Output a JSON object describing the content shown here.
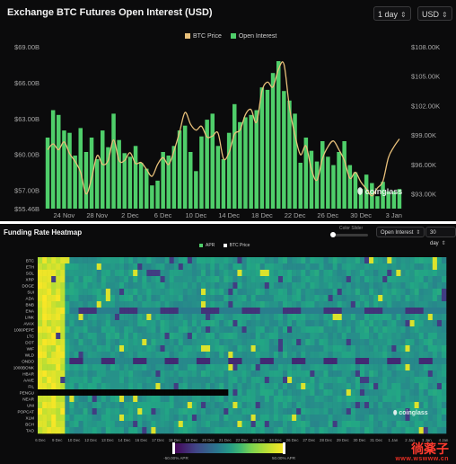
{
  "top": {
    "title": "Exchange BTC Futures Open Interest (USD)",
    "interval": "1 day",
    "currency": "USD",
    "watermark": "coinglass"
  },
  "bottom": {
    "title": "Funding Rate Heatmap",
    "color_slider_label": "Color Slider",
    "metric_select": "Open Interest",
    "range_select": "30 day",
    "watermark": "coinglass"
  },
  "corner_watermark": {
    "main": "徜薬子",
    "sub": "www.wswww.cn"
  },
  "chart_data": [
    {
      "type": "bar",
      "title": "Exchange BTC Futures Open Interest (USD)",
      "series": [
        {
          "name": "Open Interest",
          "color": "#4fce6a",
          "axis": "left",
          "values": [
            61.4,
            63.7,
            63.3,
            62.0,
            61.8,
            59.9,
            62.2,
            60.2,
            61.4,
            59.6,
            62.0,
            60.6,
            63.4,
            61.2,
            60.1,
            59.8,
            60.7,
            59.3,
            58.8,
            57.4,
            57.8,
            60.2,
            59.9,
            60.7,
            62.0,
            62.4,
            60.2,
            58.6,
            61.5,
            62.9,
            63.4,
            60.7,
            59.6,
            61.8,
            64.2,
            62.7,
            63.1,
            63.3,
            63.7,
            65.6,
            65.4,
            66.8,
            67.8,
            65.3,
            64.5,
            63.4,
            59.3,
            61.4,
            60.3,
            59.4,
            61.1,
            59.8,
            59.1,
            60.2,
            61.1,
            59.1,
            58.5,
            57.1,
            58.3,
            57.6,
            56.5,
            57.7,
            56.9,
            56.9,
            57.1
          ]
        },
        {
          "name": "BTC Price",
          "color": "#e8c07a",
          "axis": "right",
          "values": [
            97.5,
            98.1,
            97.5,
            98.3,
            97.1,
            96.3,
            95.2,
            93.0,
            94.6,
            96.9,
            96.0,
            96.4,
            98.5,
            96.4,
            96.4,
            97.2,
            96.1,
            96.2,
            95.5,
            94.8,
            96.0,
            96.7,
            96.0,
            97.4,
            99.3,
            101.3,
            100.1,
            99.5,
            99.9,
            98.8,
            98.9,
            99.2,
            96.6,
            97.2,
            99.1,
            99.5,
            101.1,
            101.6,
            100.3,
            103.5,
            104.4,
            103.9,
            105.7,
            106.2,
            101.8,
            99.0,
            97.0,
            97.9,
            95.5,
            94.4,
            96.6,
            97.8,
            98.4,
            97.5,
            96.4,
            94.6,
            95.2,
            94.2,
            93.5,
            92.8,
            93.6,
            94.3,
            96.7,
            97.8,
            98.6
          ]
        }
      ],
      "x_tick_labels": [
        "24 Nov",
        "28 Nov",
        "2 Dec",
        "6 Dec",
        "10 Dec",
        "14 Dec",
        "18 Dec",
        "22 Dec",
        "26 Dec",
        "30 Dec",
        "3 Jan"
      ],
      "y_left_ticks": [
        "$55.46B",
        "$57.00B",
        "$60.00B",
        "$63.00B",
        "$66.00B",
        "$69.00B"
      ],
      "y_right_ticks": [
        "$93.00K",
        "$96.00K",
        "$99.00K",
        "$102.00K",
        "$105.00K",
        "$108.00K"
      ],
      "ylim_left": [
        55.46,
        69
      ],
      "ylim_right": [
        91.5,
        108
      ],
      "legend_position": "top-center",
      "grid": false
    },
    {
      "type": "heatmap",
      "title": "Funding Rate Heatmap",
      "rows": [
        "BTC",
        "ETH",
        "SOL",
        "XRP",
        "DOGE",
        "SUI",
        "ADA",
        "BNB",
        "ENA",
        "LINK",
        "AVAX",
        "1000PEPE",
        "LTC",
        "DOT",
        "WIF",
        "WLD",
        "ONDO",
        "1000BONK",
        "HBAR",
        "AAVE",
        "FIL",
        "PENGU",
        "NEAR",
        "UNI",
        "POPCAT",
        "XLM",
        "BCH",
        "TAO"
      ],
      "x_tick_labels": [
        "6 Dec",
        "9 Dec",
        "10 Dec",
        "12 Dec",
        "13 Dec",
        "14 Dec",
        "16 Dec",
        "17 Dec",
        "18 Dec",
        "19 Dec",
        "20 Dec",
        "21 Dec",
        "22 Dec",
        "23 Dec",
        "24 Dec",
        "26 Dec",
        "27 Dec",
        "28 Dec",
        "29 Dec",
        "30 Dec",
        "31 Dec",
        "1 Jan",
        "2 Jan",
        "3 Jan",
        "4 Jan"
      ],
      "color_scale_min": "-50.00% APR",
      "color_scale_max": "50.00% APR",
      "colormap": "viridis",
      "legend": [
        "APR",
        "BTC Price"
      ],
      "missing_row": "PENGU",
      "grid": false
    }
  ]
}
